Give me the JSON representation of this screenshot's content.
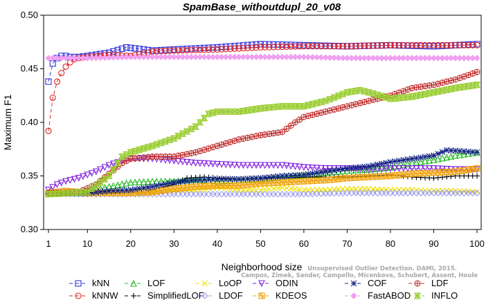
{
  "chart_data": {
    "type": "line",
    "title": "SpamBase_withoutdupl_20_v08",
    "xlabel": "Neighborhood size",
    "ylabel": "Maximum F1",
    "xlim": [
      1,
      100
    ],
    "ylim": [
      0.3,
      0.5
    ],
    "xticks": [
      "1",
      "10",
      "20",
      "30",
      "40",
      "50",
      "60",
      "70",
      "80",
      "90",
      "100"
    ],
    "yticks": [
      "0.30",
      "0.35",
      "0.40",
      "0.45",
      "0.50"
    ],
    "grid": false,
    "legend_position": "bottom",
    "watermark": [
      "Campos, Zimek, Sander, Campello, Micenkova, Schubert, Assent, Houle",
      "Unsupervised Outlier Detection. DAMI, 2015."
    ],
    "series": [
      {
        "name": "kNN",
        "color": "#3030dd",
        "marker": "square",
        "dash": "5,4",
        "points": [
          [
            1,
            0.438
          ],
          [
            2,
            0.455
          ],
          [
            3,
            0.46
          ],
          [
            4,
            0.462
          ],
          [
            5,
            0.462
          ],
          [
            6,
            0.461
          ],
          [
            8,
            0.461
          ],
          [
            10,
            0.462
          ],
          [
            15,
            0.465
          ],
          [
            19,
            0.47
          ],
          [
            25,
            0.467
          ],
          [
            30,
            0.468
          ],
          [
            40,
            0.47
          ],
          [
            50,
            0.473
          ],
          [
            60,
            0.472
          ],
          [
            70,
            0.471
          ],
          [
            80,
            0.472
          ],
          [
            90,
            0.471
          ],
          [
            100,
            0.473
          ]
        ]
      },
      {
        "name": "kNNW",
        "color": "#dd2020",
        "marker": "circle",
        "dash": "5,4",
        "points": [
          [
            1,
            0.392
          ],
          [
            2,
            0.423
          ],
          [
            3,
            0.438
          ],
          [
            4,
            0.446
          ],
          [
            5,
            0.452
          ],
          [
            6,
            0.456
          ],
          [
            7,
            0.459
          ],
          [
            8,
            0.46
          ],
          [
            10,
            0.461
          ],
          [
            15,
            0.463
          ],
          [
            20,
            0.462
          ],
          [
            25,
            0.466
          ],
          [
            30,
            0.467
          ],
          [
            40,
            0.468
          ],
          [
            50,
            0.47
          ],
          [
            60,
            0.471
          ],
          [
            70,
            0.471
          ],
          [
            80,
            0.472
          ],
          [
            90,
            0.472
          ],
          [
            100,
            0.472
          ]
        ]
      },
      {
        "name": "LOF",
        "color": "#22bb22",
        "marker": "triangle-up",
        "dash": "5,4",
        "points": [
          [
            1,
            0.333
          ],
          [
            10,
            0.336
          ],
          [
            15,
            0.34
          ],
          [
            20,
            0.344
          ],
          [
            25,
            0.345
          ],
          [
            30,
            0.345
          ],
          [
            35,
            0.347
          ],
          [
            40,
            0.345
          ],
          [
            45,
            0.346
          ],
          [
            50,
            0.347
          ],
          [
            55,
            0.349
          ],
          [
            60,
            0.351
          ],
          [
            65,
            0.353
          ],
          [
            70,
            0.355
          ],
          [
            75,
            0.356
          ],
          [
            80,
            0.358
          ],
          [
            85,
            0.362
          ],
          [
            90,
            0.365
          ],
          [
            95,
            0.369
          ],
          [
            100,
            0.372
          ]
        ]
      },
      {
        "name": "SimplifiedLOF",
        "color": "#000000",
        "marker": "plus",
        "dash": "5,4",
        "points": [
          [
            1,
            0.333
          ],
          [
            10,
            0.333
          ],
          [
            15,
            0.334
          ],
          [
            22,
            0.334
          ],
          [
            25,
            0.337
          ],
          [
            30,
            0.342
          ],
          [
            33,
            0.348
          ],
          [
            37,
            0.349
          ],
          [
            40,
            0.348
          ],
          [
            45,
            0.347
          ],
          [
            50,
            0.348
          ],
          [
            55,
            0.348
          ],
          [
            60,
            0.349
          ],
          [
            65,
            0.349
          ],
          [
            70,
            0.349
          ],
          [
            75,
            0.35
          ],
          [
            80,
            0.351
          ],
          [
            85,
            0.349
          ],
          [
            90,
            0.348
          ],
          [
            95,
            0.35
          ],
          [
            100,
            0.35
          ]
        ]
      },
      {
        "name": "LoOP",
        "color": "#f0e000",
        "marker": "x",
        "dash": "5,4",
        "points": [
          [
            1,
            0.334
          ],
          [
            10,
            0.334
          ],
          [
            20,
            0.334
          ],
          [
            25,
            0.334
          ],
          [
            30,
            0.336
          ],
          [
            35,
            0.337
          ],
          [
            40,
            0.339
          ],
          [
            45,
            0.337
          ],
          [
            50,
            0.337
          ],
          [
            55,
            0.339
          ],
          [
            60,
            0.337
          ],
          [
            65,
            0.337
          ],
          [
            70,
            0.338
          ],
          [
            75,
            0.338
          ],
          [
            80,
            0.337
          ],
          [
            85,
            0.337
          ],
          [
            90,
            0.336
          ],
          [
            95,
            0.336
          ],
          [
            100,
            0.335
          ]
        ]
      },
      {
        "name": "LDOF",
        "color": "#9a9af0",
        "marker": "diamond",
        "dash": "5,4",
        "points": [
          [
            1,
            0.333
          ],
          [
            10,
            0.333
          ],
          [
            20,
            0.333
          ],
          [
            30,
            0.333
          ],
          [
            40,
            0.333
          ],
          [
            50,
            0.333
          ],
          [
            60,
            0.333
          ],
          [
            70,
            0.334
          ],
          [
            80,
            0.334
          ],
          [
            90,
            0.334
          ],
          [
            100,
            0.334
          ]
        ]
      },
      {
        "name": "ODIN",
        "color": "#8020e0",
        "marker": "triangle-down",
        "dash": "5,4",
        "points": [
          [
            1,
            0.337
          ],
          [
            3,
            0.342
          ],
          [
            5,
            0.345
          ],
          [
            8,
            0.348
          ],
          [
            10,
            0.351
          ],
          [
            12,
            0.354
          ],
          [
            15,
            0.36
          ],
          [
            18,
            0.364
          ],
          [
            20,
            0.366
          ],
          [
            25,
            0.366
          ],
          [
            30,
            0.364
          ],
          [
            35,
            0.362
          ],
          [
            40,
            0.361
          ],
          [
            45,
            0.36
          ],
          [
            50,
            0.36
          ],
          [
            55,
            0.36
          ],
          [
            60,
            0.358
          ],
          [
            65,
            0.357
          ],
          [
            70,
            0.357
          ],
          [
            75,
            0.356
          ],
          [
            80,
            0.357
          ],
          [
            85,
            0.357
          ],
          [
            90,
            0.357
          ],
          [
            95,
            0.356
          ],
          [
            100,
            0.356
          ]
        ]
      },
      {
        "name": "KDEOS",
        "color": "#f0a000",
        "marker": "asterisk-square",
        "dash": "5,4",
        "points": [
          [
            1,
            0.334
          ],
          [
            5,
            0.336
          ],
          [
            10,
            0.334
          ],
          [
            15,
            0.334
          ],
          [
            20,
            0.334
          ],
          [
            25,
            0.335
          ],
          [
            30,
            0.338
          ],
          [
            35,
            0.34
          ],
          [
            40,
            0.341
          ],
          [
            45,
            0.341
          ],
          [
            50,
            0.343
          ],
          [
            55,
            0.344
          ],
          [
            60,
            0.345
          ],
          [
            65,
            0.346
          ],
          [
            70,
            0.348
          ],
          [
            75,
            0.349
          ],
          [
            80,
            0.35
          ],
          [
            85,
            0.352
          ],
          [
            90,
            0.353
          ],
          [
            95,
            0.354
          ],
          [
            100,
            0.357
          ]
        ]
      },
      {
        "name": "COF",
        "color": "#102080",
        "marker": "star",
        "dash": "5,4",
        "points": [
          [
            1,
            0.333
          ],
          [
            10,
            0.334
          ],
          [
            15,
            0.336
          ],
          [
            20,
            0.337
          ],
          [
            25,
            0.34
          ],
          [
            30,
            0.344
          ],
          [
            35,
            0.346
          ],
          [
            40,
            0.347
          ],
          [
            45,
            0.347
          ],
          [
            50,
            0.348
          ],
          [
            55,
            0.35
          ],
          [
            60,
            0.351
          ],
          [
            65,
            0.354
          ],
          [
            70,
            0.357
          ],
          [
            75,
            0.359
          ],
          [
            80,
            0.363
          ],
          [
            85,
            0.366
          ],
          [
            90,
            0.369
          ],
          [
            93,
            0.374
          ],
          [
            97,
            0.373
          ],
          [
            100,
            0.372
          ]
        ]
      },
      {
        "name": "FastABOD",
        "color": "#f0a0f0",
        "marker": "diamond-filled",
        "dash": "5,4",
        "points": [
          [
            1,
            0.46
          ],
          [
            10,
            0.46
          ],
          [
            20,
            0.461
          ],
          [
            30,
            0.461
          ],
          [
            40,
            0.461
          ],
          [
            50,
            0.461
          ],
          [
            60,
            0.461
          ],
          [
            70,
            0.46
          ],
          [
            80,
            0.46
          ],
          [
            90,
            0.46
          ],
          [
            100,
            0.46
          ]
        ]
      },
      {
        "name": "LDF",
        "color": "#c03030",
        "marker": "circle-plus",
        "dash": "5,4",
        "points": [
          [
            1,
            0.334
          ],
          [
            8,
            0.335
          ],
          [
            12,
            0.342
          ],
          [
            15,
            0.352
          ],
          [
            18,
            0.362
          ],
          [
            20,
            0.366
          ],
          [
            25,
            0.368
          ],
          [
            30,
            0.368
          ],
          [
            35,
            0.372
          ],
          [
            40,
            0.378
          ],
          [
            45,
            0.384
          ],
          [
            50,
            0.388
          ],
          [
            55,
            0.391
          ],
          [
            58,
            0.4
          ],
          [
            60,
            0.405
          ],
          [
            65,
            0.41
          ],
          [
            70,
            0.415
          ],
          [
            75,
            0.42
          ],
          [
            80,
            0.425
          ],
          [
            85,
            0.432
          ],
          [
            90,
            0.435
          ],
          [
            95,
            0.44
          ],
          [
            100,
            0.447
          ]
        ]
      },
      {
        "name": "INFLO",
        "color": "#9acd32",
        "marker": "hourglass",
        "dash": "5,4",
        "points": [
          [
            1,
            0.333
          ],
          [
            10,
            0.335
          ],
          [
            15,
            0.35
          ],
          [
            18,
            0.368
          ],
          [
            20,
            0.372
          ],
          [
            25,
            0.378
          ],
          [
            30,
            0.385
          ],
          [
            35,
            0.396
          ],
          [
            38,
            0.408
          ],
          [
            40,
            0.41
          ],
          [
            45,
            0.41
          ],
          [
            50,
            0.413
          ],
          [
            55,
            0.415
          ],
          [
            60,
            0.415
          ],
          [
            65,
            0.42
          ],
          [
            70,
            0.428
          ],
          [
            73,
            0.43
          ],
          [
            75,
            0.428
          ],
          [
            80,
            0.422
          ],
          [
            85,
            0.424
          ],
          [
            90,
            0.428
          ],
          [
            95,
            0.432
          ],
          [
            100,
            0.435
          ]
        ]
      }
    ]
  }
}
